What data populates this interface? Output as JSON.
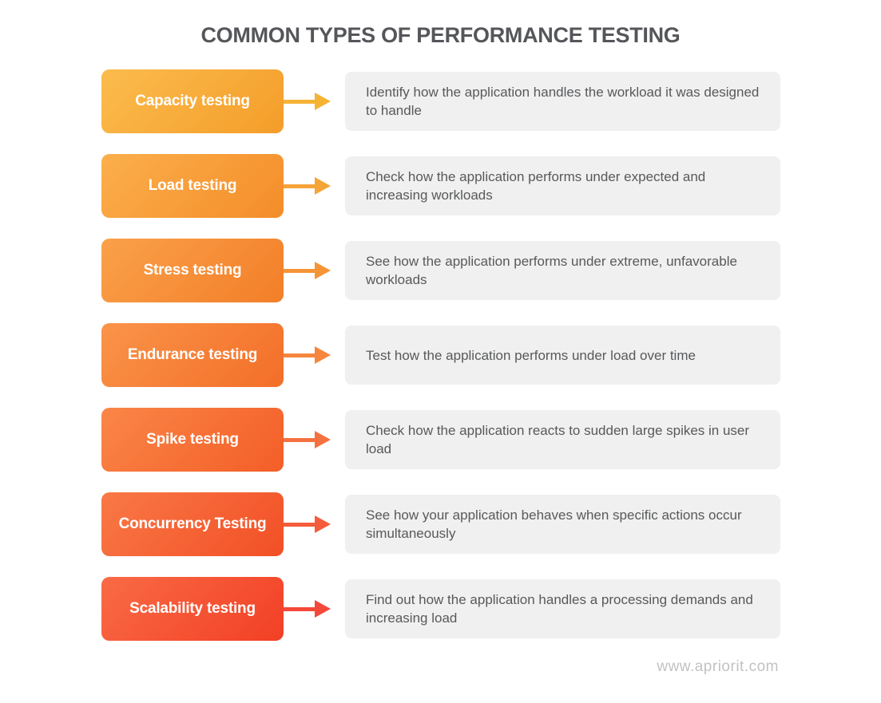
{
  "title": "COMMON TYPES OF PERFORMANCE TESTING",
  "footer": {
    "website": "www.apriorit.com"
  },
  "colors": {
    "background": "#FFFFFF",
    "title_text": "#55565A",
    "description_text": "#58595B",
    "description_box_bg": "#F0F0F0",
    "button_text": "#FFFFFF",
    "footer_text": "#C2C2C2"
  },
  "rows": [
    {
      "label": "Capacity testing",
      "description": "Identify how the application handles the workload it was designed to handle",
      "gradient_start": "#FBBC4D",
      "gradient_end": "#F49D2A",
      "arrow_color": "#F5B335"
    },
    {
      "label": "Load testing",
      "description": "Check how the application performs under expected and increasing workloads",
      "gradient_start": "#FBAF4C",
      "gradient_end": "#F48D29",
      "arrow_color": "#F5A438"
    },
    {
      "label": "Stress testing",
      "description": "See how the application performs under extreme, unfavorable workloads",
      "gradient_start": "#FAA14A",
      "gradient_end": "#F37E28",
      "arrow_color": "#F69538"
    },
    {
      "label": "Endurance testing",
      "description": "Test how the application performs under load over time",
      "gradient_start": "#FA9449",
      "gradient_end": "#F36E28",
      "arrow_color": "#F6863E"
    },
    {
      "label": "Spike testing",
      "description": "Check how the application reacts to sudden large spikes in user load",
      "gradient_start": "#FA8648",
      "gradient_end": "#F35E27",
      "arrow_color": "#F57140"
    },
    {
      "label": "Concurrency Testing",
      "description": "See how your application behaves when specific actions occur simultaneously",
      "gradient_start": "#F97946",
      "gradient_end": "#F24F26",
      "arrow_color": "#F55C3C"
    },
    {
      "label": "Scalability testing",
      "description": "Find out how the application handles a processing demands and increasing load",
      "gradient_start": "#F96B45",
      "gradient_end": "#F23F25",
      "arrow_color": "#F4483A"
    }
  ]
}
